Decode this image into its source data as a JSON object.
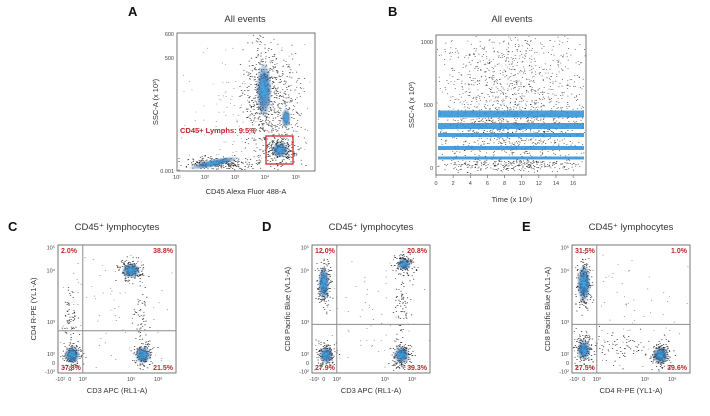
{
  "colors": {
    "density_low": "#1a1a1a",
    "density_mid": "#2f6fae",
    "density_high": "#2aa8e8",
    "gate": "#d0282e",
    "quadrant_line": "#8c8c8c",
    "label_red": "#c0272d"
  },
  "chart_data": [
    {
      "panel": "A",
      "type": "scatter",
      "title": "All events",
      "xlabel": "CD45 Alexa Fluor 488-A",
      "ylabel": "SSC-A (x 10³)",
      "x_scale": "log",
      "x_ticks": [
        "10¹",
        "10²",
        "10³",
        "10⁴",
        "10⁵"
      ],
      "y_ticks": [
        "600",
        "500",
        "400",
        "300",
        "200",
        "100",
        "0.001"
      ],
      "gate": {
        "label": "CD45+ Lymphs: 9.5%",
        "x_range": [
          3000,
          20000
        ],
        "y_range": [
          20,
          130
        ]
      },
      "populations": [
        {
          "name_ref": "lymphocytes",
          "x_center": 7000,
          "y_center": 75
        },
        {
          "name_ref": "granulocytes",
          "x_center": 3500,
          "y_center": 380
        },
        {
          "name_ref": "monocytes",
          "x_center": 9000,
          "y_center": 200
        },
        {
          "name_ref": "debris",
          "x_center": 100,
          "y_center": 30
        }
      ]
    },
    {
      "panel": "B",
      "type": "scatter",
      "title": "All events",
      "xlabel": "Time (x 10⁶)",
      "ylabel": "SSC-A (x 10³)",
      "x_ticks": [
        "0",
        "2",
        "4",
        "6",
        "8",
        "10",
        "12",
        "14",
        "16"
      ],
      "y_ticks": [
        "1000",
        "500",
        "0"
      ],
      "xlim": [
        0,
        17.5
      ],
      "ylim": [
        -50,
        1050
      ]
    },
    {
      "panel": "C",
      "type": "scatter",
      "title": "CD45⁺ lymphocytes",
      "xlabel": "CD3 APC (RL1-A)",
      "ylabel": "CD4 R-PE (YL1-A)",
      "x_ticks": [
        "-10¹",
        "0",
        "10³",
        "10⁵",
        "10⁶"
      ],
      "y_ticks": [
        "10⁵",
        "10⁴",
        "10³",
        "10²",
        "0",
        "-10²"
      ],
      "quadrants": {
        "top_left": "2.0%",
        "top_right": "38.8%",
        "bottom_left": "37.8%",
        "bottom_right": "21.5%"
      }
    },
    {
      "panel": "D",
      "type": "scatter",
      "title": "CD45⁺ lymphocytes",
      "xlabel": "CD3 APC (RL1-A)",
      "ylabel": "CD8 Pacific Blue (VL1-A)",
      "x_ticks": [
        "-10¹",
        "0",
        "10³",
        "10⁵",
        "10⁶"
      ],
      "y_ticks": [
        "10⁵",
        "10⁴",
        "10³",
        "10²",
        "0",
        "-10²"
      ],
      "quadrants": {
        "top_left": "12.0%",
        "top_right": "20.8%",
        "bottom_left": "27.9%",
        "bottom_right": "39.3%"
      }
    },
    {
      "panel": "E",
      "type": "scatter",
      "title": "CD45⁺ lymphocytes",
      "xlabel": "CD4 R-PE (YL1-A)",
      "ylabel": "CD8 Pacific Blue (VL1-A)",
      "x_ticks": [
        "-10¹",
        "0",
        "10³",
        "10⁵",
        "10⁶"
      ],
      "y_ticks": [
        "10⁵",
        "10⁴",
        "10³",
        "10²",
        "0",
        "-10²"
      ],
      "quadrants": {
        "top_left": "31.5%",
        "top_right": "1.0%",
        "bottom_left": "27.5%",
        "bottom_right": "39.6%"
      }
    }
  ]
}
